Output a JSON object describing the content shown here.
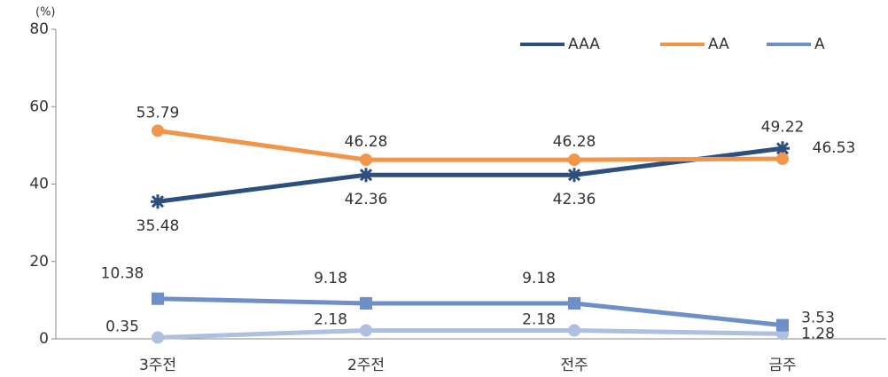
{
  "chart_data": {
    "type": "line",
    "y_unit": "(%)",
    "categories": [
      "3주전",
      "2주전",
      "전주",
      "금주"
    ],
    "series": [
      {
        "name": "AAA",
        "color": "#2e4f7e",
        "marker": "star",
        "values": [
          35.48,
          42.36,
          42.36,
          49.22
        ]
      },
      {
        "name": "AA",
        "color": "#f0954a",
        "marker": "circle",
        "values": [
          53.79,
          46.28,
          46.28,
          46.53
        ]
      },
      {
        "name": "A",
        "color": "#6f8fc8",
        "marker": "square",
        "values": [
          10.38,
          9.18,
          9.18,
          3.53
        ]
      },
      {
        "color": "#aebfdf",
        "marker": "circle",
        "values": [
          0.35,
          2.18,
          2.18,
          1.28
        ]
      }
    ],
    "ylim": [
      0,
      80
    ],
    "yticks": [
      0,
      20,
      40,
      60,
      80
    ],
    "grid": false,
    "legend": "top-right"
  }
}
